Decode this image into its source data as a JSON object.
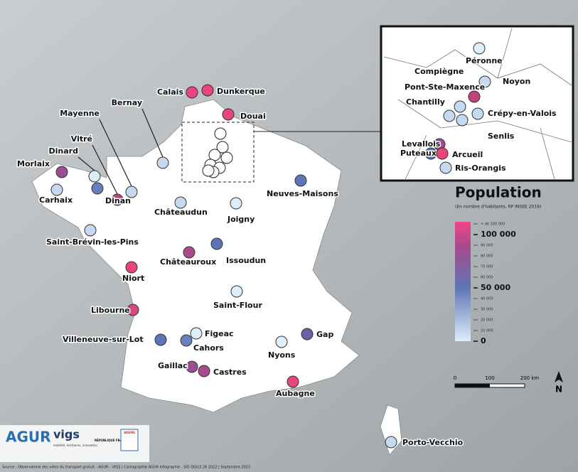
{
  "map": {
    "cities": [
      {
        "name": "Calais",
        "color": "#e8467c"
      },
      {
        "name": "Dunkerque",
        "color": "#e8467c"
      },
      {
        "name": "Douai",
        "color": "#e8467c"
      },
      {
        "name": "Bernay",
        "color": "#c6d9f0"
      },
      {
        "name": "Mayenne",
        "color": "#c6d9f0"
      },
      {
        "name": "Vitré",
        "color": "#c0427f"
      },
      {
        "name": "Dinard",
        "color": "#dbeefa"
      },
      {
        "name": "Morlaix",
        "color": "#9a4d8f"
      },
      {
        "name": "Carhaix",
        "color": "#c6d9f0"
      },
      {
        "name": "Dinan",
        "color": "#6a7fc0"
      },
      {
        "name": "Châteaudun",
        "color": "#c6d9f0"
      },
      {
        "name": "Joigny",
        "color": "#dbeefa"
      },
      {
        "name": "Neuves-Maisons",
        "color": "#5f74b5"
      },
      {
        "name": "Saint-Brévin-les-Pins",
        "color": "#c6d9f0"
      },
      {
        "name": "Issoudun",
        "color": "#5f74b5"
      },
      {
        "name": "Châteauroux",
        "color": "#a84a8c"
      },
      {
        "name": "Niort",
        "color": "#e8467c"
      },
      {
        "name": "Libourne",
        "color": "#d8457f"
      },
      {
        "name": "Saint-Flour",
        "color": "#dbeefa"
      },
      {
        "name": "Villeneuve-sur-Lot",
        "color": "#5f74b5"
      },
      {
        "name": "Figeac",
        "color": "#dbeefa"
      },
      {
        "name": "Cahors",
        "color": "#6a7fc0"
      },
      {
        "name": "Gaillac",
        "color": "#9a4d8f"
      },
      {
        "name": "Castres",
        "color": "#a84a8c"
      },
      {
        "name": "Gap",
        "color": "#6a5fa5"
      },
      {
        "name": "Nyons",
        "color": "#dbeefa"
      },
      {
        "name": "Aubagne",
        "color": "#e8467c"
      },
      {
        "name": "Porto-Vecchio",
        "color": "#c6d9f0"
      }
    ],
    "inset_cities": [
      {
        "name": "Péronne",
        "color": "#dbeefa"
      },
      {
        "name": "Compiègne",
        "color": "#c0427f"
      },
      {
        "name": "Noyon",
        "color": "#c6d9f0"
      },
      {
        "name": "Pont-Ste-Maxence",
        "color": "#c6d9f0"
      },
      {
        "name": "Chantilly",
        "color": "#c6d9f0"
      },
      {
        "name": "Crépy-en-Valois",
        "color": "#c6d9f0"
      },
      {
        "name": "Senlis",
        "color": "#c6d9f0"
      },
      {
        "name": "Levallois",
        "color": "#9a4d8f"
      },
      {
        "name": "Puteaux",
        "color": "#5f74b5"
      },
      {
        "name": "Arcueil",
        "color": "#e8467c"
      },
      {
        "name": "Ris-Orangis",
        "color": "#c6d9f0"
      }
    ],
    "legend": {
      "title": "Population",
      "subtitle": "(En nombre d'habitants, RP INSEE 2019)",
      "ticks": [
        "+ de 100 000",
        "100 000",
        "90 000",
        "80 000",
        "70 000",
        "60 000",
        "50 000",
        "40 000",
        "30 000",
        "20 000",
        "10 000",
        "0"
      ]
    },
    "scale": [
      "0",
      "100",
      "200 km"
    ],
    "north": "N",
    "logos": {
      "agur": "AGUR",
      "vigs": "vigs",
      "vigs_tagline": "mobilité, territoires, innovation",
      "republique": "RÉPUBLIQUE FRANÇAISE",
      "ademe": "ADEME"
    },
    "source": "Source : Observatoire des villes du transport gratuit - AGUR - VIGS | Cartographie AGUR Infographie - SIG QGis3.26 2022 | Septembre 2022"
  }
}
